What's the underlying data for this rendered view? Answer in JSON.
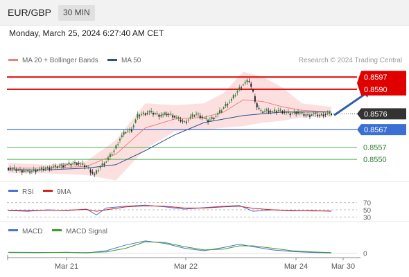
{
  "header": {
    "pair": "EUR/GBP",
    "timeframe": "30 MIN",
    "datetime": "Monday, March 25, 2024 6:27:40 AM CET"
  },
  "credit": "Research © 2024 Trading Central",
  "colors": {
    "resistance": "#e00000",
    "support": "#4caf50",
    "pivot": "#3b6fd4",
    "last_bg": "#333333",
    "bollinger_fill": "#fbd6d6",
    "ma20": "#f08080",
    "ma50": "#2a4f8f",
    "candle_up": "#2e7d32",
    "candle_down": "#222222",
    "rsi": "#4a6fd8",
    "rsi_ma": "#d81f1f",
    "macd": "#4a6fd8",
    "macd_signal": "#3a9a2a",
    "arrow": "#2c5fa8"
  },
  "chart_data": [
    {
      "type": "line",
      "panel": "price",
      "legend": [
        {
          "name": "MA 20 + Bollinger Bands",
          "color": "#f08080"
        },
        {
          "name": "MA 50",
          "color": "#2a4f8f"
        }
      ],
      "ylim": [
        8539,
        8603
      ],
      "x_ticks": [
        "Mar 21",
        "Mar 22",
        "Mar 24",
        "Mar 30"
      ],
      "levels": [
        {
          "label": "0.8597",
          "value": 8597,
          "kind": "resistance"
        },
        {
          "label": "0.8590",
          "value": 8590,
          "kind": "resistance"
        },
        {
          "label": "0.8576",
          "value": 8576,
          "kind": "last"
        },
        {
          "label": "0.8567",
          "value": 8567,
          "kind": "pivot"
        },
        {
          "label": "0.8557",
          "value": 8557,
          "kind": "support"
        },
        {
          "label": "0.8550",
          "value": 8550,
          "kind": "support"
        }
      ],
      "price_path": [
        [
          0,
          8545
        ],
        [
          5,
          8544
        ],
        [
          10,
          8543
        ],
        [
          15,
          8544
        ],
        [
          20,
          8545
        ],
        [
          25,
          8546
        ],
        [
          30,
          8547
        ],
        [
          35,
          8548
        ],
        [
          40,
          8546
        ],
        [
          44,
          8541
        ],
        [
          47,
          8546
        ],
        [
          50,
          8549
        ],
        [
          54,
          8555
        ],
        [
          57,
          8562
        ],
        [
          60,
          8566
        ],
        [
          63,
          8567
        ],
        [
          66,
          8575
        ],
        [
          69,
          8576
        ],
        [
          72,
          8577
        ],
        [
          75,
          8576
        ],
        [
          78,
          8575
        ],
        [
          81,
          8576
        ],
        [
          84,
          8575
        ],
        [
          87,
          8573
        ],
        [
          90,
          8571
        ],
        [
          93,
          8574
        ],
        [
          96,
          8576
        ],
        [
          99,
          8574
        ],
        [
          102,
          8572
        ],
        [
          105,
          8574
        ],
        [
          108,
          8577
        ],
        [
          111,
          8581
        ],
        [
          114,
          8584
        ],
        [
          117,
          8589
        ],
        [
          120,
          8593
        ],
        [
          123,
          8595
        ],
        [
          125,
          8588
        ],
        [
          127,
          8580
        ],
        [
          129,
          8577
        ],
        [
          132,
          8578
        ],
        [
          135,
          8577
        ],
        [
          138,
          8578
        ],
        [
          141,
          8577
        ],
        [
          144,
          8576
        ],
        [
          147,
          8577
        ],
        [
          150,
          8576
        ],
        [
          153,
          8575
        ],
        [
          156,
          8576
        ],
        [
          159,
          8575
        ],
        [
          162,
          8576
        ],
        [
          165,
          8576
        ]
      ],
      "series": [
        {
          "name": "MA 20 + Bollinger Bands",
          "path": [
            [
              0,
              8545
            ],
            [
              20,
              8545
            ],
            [
              40,
              8546
            ],
            [
              55,
              8553
            ],
            [
              70,
              8568
            ],
            [
              85,
              8573
            ],
            [
              100,
              8574
            ],
            [
              110,
              8577
            ],
            [
              120,
              8584
            ],
            [
              130,
              8583
            ],
            [
              140,
              8580
            ],
            [
              150,
              8578
            ],
            [
              165,
              8577
            ]
          ]
        },
        {
          "name": "MA 50",
          "path": [
            [
              0,
              8544
            ],
            [
              20,
              8544
            ],
            [
              40,
              8545
            ],
            [
              55,
              8547
            ],
            [
              70,
              8555
            ],
            [
              85,
              8564
            ],
            [
              100,
              8571
            ],
            [
              110,
              8573
            ],
            [
              120,
              8575
            ],
            [
              130,
              8576
            ],
            [
              140,
              8577
            ],
            [
              150,
              8577
            ],
            [
              165,
              8577
            ]
          ]
        }
      ],
      "bollinger": {
        "upper": [
          [
            0,
            8548
          ],
          [
            20,
            8547
          ],
          [
            40,
            8549
          ],
          [
            55,
            8561
          ],
          [
            70,
            8582
          ],
          [
            85,
            8581
          ],
          [
            100,
            8582
          ],
          [
            110,
            8588
          ],
          [
            120,
            8600
          ],
          [
            130,
            8597
          ],
          [
            140,
            8591
          ],
          [
            150,
            8582
          ],
          [
            165,
            8580
          ]
        ],
        "lower": [
          [
            0,
            8542
          ],
          [
            20,
            8542
          ],
          [
            40,
            8541
          ],
          [
            55,
            8538
          ],
          [
            70,
            8556
          ],
          [
            85,
            8566
          ],
          [
            100,
            8567
          ],
          [
            110,
            8568
          ],
          [
            120,
            8569
          ],
          [
            130,
            8571
          ],
          [
            140,
            8572
          ],
          [
            150,
            8574
          ],
          [
            165,
            8574
          ]
        ]
      },
      "arrow": {
        "from": [
          165,
          8576
        ],
        "to": [
          182,
          8590
        ]
      }
    },
    {
      "type": "line",
      "panel": "RSI",
      "legend": [
        {
          "name": "RSI",
          "color": "#4a6fd8"
        },
        {
          "name": "9MA",
          "color": "#d81f1f"
        }
      ],
      "ylim": [
        25,
        75
      ],
      "y_ticks": [
        "70",
        "50",
        "30"
      ],
      "series": [
        {
          "name": "RSI",
          "path": [
            [
              0,
              48
            ],
            [
              10,
              46
            ],
            [
              20,
              50
            ],
            [
              30,
              48
            ],
            [
              40,
              52
            ],
            [
              45,
              36
            ],
            [
              50,
              55
            ],
            [
              60,
              60
            ],
            [
              70,
              63
            ],
            [
              80,
              58
            ],
            [
              90,
              52
            ],
            [
              100,
              56
            ],
            [
              110,
              60
            ],
            [
              118,
              62
            ],
            [
              125,
              46
            ],
            [
              135,
              50
            ],
            [
              145,
              47
            ],
            [
              155,
              48
            ],
            [
              165,
              46
            ]
          ]
        },
        {
          "name": "9MA",
          "path": [
            [
              0,
              49
            ],
            [
              10,
              48
            ],
            [
              20,
              49
            ],
            [
              30,
              49
            ],
            [
              40,
              51
            ],
            [
              45,
              46
            ],
            [
              50,
              50
            ],
            [
              60,
              58
            ],
            [
              70,
              61
            ],
            [
              80,
              60
            ],
            [
              90,
              55
            ],
            [
              100,
              55
            ],
            [
              110,
              58
            ],
            [
              118,
              60
            ],
            [
              125,
              54
            ],
            [
              135,
              50
            ],
            [
              145,
              48
            ],
            [
              155,
              47
            ],
            [
              165,
              47
            ]
          ]
        }
      ]
    },
    {
      "type": "line",
      "panel": "MACD",
      "legend": [
        {
          "name": "MACD",
          "color": "#4a6fd8"
        },
        {
          "name": "MACD Signal",
          "color": "#3a9a2a"
        }
      ],
      "ylim": [
        -1,
        10
      ],
      "y_ticks": [
        "0"
      ],
      "series": [
        {
          "name": "MACD",
          "path": [
            [
              0,
              0.5
            ],
            [
              15,
              0.4
            ],
            [
              30,
              0.6
            ],
            [
              40,
              0.2
            ],
            [
              50,
              1.5
            ],
            [
              60,
              5
            ],
            [
              70,
              7.5
            ],
            [
              80,
              6
            ],
            [
              90,
              3
            ],
            [
              100,
              1.5
            ],
            [
              110,
              3.5
            ],
            [
              118,
              5.5
            ],
            [
              125,
              4
            ],
            [
              135,
              2
            ],
            [
              145,
              1
            ],
            [
              155,
              0.5
            ],
            [
              165,
              0.2
            ]
          ]
        },
        {
          "name": "MACD Signal",
          "path": [
            [
              0,
              0.6
            ],
            [
              15,
              0.5
            ],
            [
              30,
              0.5
            ],
            [
              40,
              0.4
            ],
            [
              50,
              0.8
            ],
            [
              60,
              3
            ],
            [
              70,
              7
            ],
            [
              80,
              6.5
            ],
            [
              90,
              4
            ],
            [
              100,
              2
            ],
            [
              110,
              2.5
            ],
            [
              118,
              4.5
            ],
            [
              125,
              4.5
            ],
            [
              135,
              3
            ],
            [
              145,
              1.5
            ],
            [
              155,
              0.8
            ],
            [
              165,
              0.4
            ]
          ]
        }
      ]
    }
  ]
}
